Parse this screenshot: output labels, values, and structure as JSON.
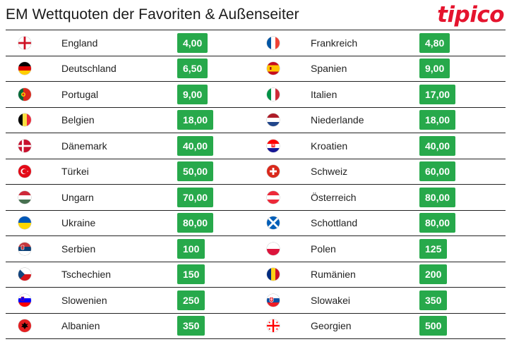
{
  "title": "EM Wettquoten der Favoriten & Außenseiter",
  "logo": "tipico",
  "rows": [
    {
      "left": {
        "country": "England",
        "odds": "4,00",
        "flag": "england-flag"
      },
      "right": {
        "country": "Frankreich",
        "odds": "4,80",
        "flag": "france-flag"
      }
    },
    {
      "left": {
        "country": "Deutschland",
        "odds": "6,50",
        "flag": "germany-flag"
      },
      "right": {
        "country": "Spanien",
        "odds": "9,00",
        "flag": "spain-flag"
      }
    },
    {
      "left": {
        "country": "Portugal",
        "odds": "9,00",
        "flag": "portugal-flag"
      },
      "right": {
        "country": "Italien",
        "odds": "17,00",
        "flag": "italy-flag"
      }
    },
    {
      "left": {
        "country": "Belgien",
        "odds": "18,00",
        "flag": "belgium-flag"
      },
      "right": {
        "country": "Niederlande",
        "odds": "18,00",
        "flag": "netherlands-flag"
      }
    },
    {
      "left": {
        "country": "Dänemark",
        "odds": "40,00",
        "flag": "denmark-flag"
      },
      "right": {
        "country": "Kroatien",
        "odds": "40,00",
        "flag": "croatia-flag"
      }
    },
    {
      "left": {
        "country": "Türkei",
        "odds": "50,00",
        "flag": "turkey-flag"
      },
      "right": {
        "country": "Schweiz",
        "odds": "60,00",
        "flag": "switzerland-flag"
      }
    },
    {
      "left": {
        "country": "Ungarn",
        "odds": "70,00",
        "flag": "hungary-flag"
      },
      "right": {
        "country": "Österreich",
        "odds": "80,00",
        "flag": "austria-flag"
      }
    },
    {
      "left": {
        "country": "Ukraine",
        "odds": "80,00",
        "flag": "ukraine-flag"
      },
      "right": {
        "country": "Schottland",
        "odds": "80,00",
        "flag": "scotland-flag"
      }
    },
    {
      "left": {
        "country": "Serbien",
        "odds": "100",
        "flag": "serbia-flag"
      },
      "right": {
        "country": "Polen",
        "odds": "125",
        "flag": "poland-flag"
      }
    },
    {
      "left": {
        "country": "Tschechien",
        "odds": "150",
        "flag": "czechia-flag"
      },
      "right": {
        "country": "Rumänien",
        "odds": "200",
        "flag": "romania-flag"
      }
    },
    {
      "left": {
        "country": "Slowenien",
        "odds": "250",
        "flag": "slovenia-flag"
      },
      "right": {
        "country": "Slowakei",
        "odds": "350",
        "flag": "slovakia-flag"
      }
    },
    {
      "left": {
        "country": "Albanien",
        "odds": "350",
        "flag": "albania-flag"
      },
      "right": {
        "country": "Georgien",
        "odds": "500",
        "flag": "georgia-flag"
      }
    }
  ],
  "colors": {
    "odds_background": "#27a94b",
    "brand": "#e5142e",
    "rule": "#222222"
  }
}
